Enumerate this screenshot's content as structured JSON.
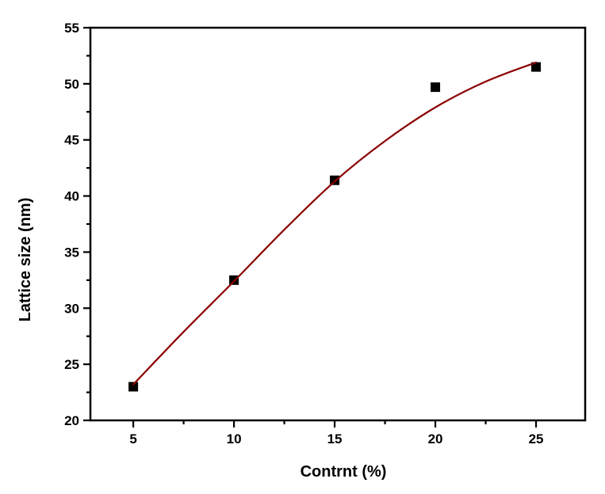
{
  "chart_data": {
    "type": "scatter",
    "title": "",
    "xlabel": "Contrnt (%)",
    "ylabel": "Lattice size (nm)",
    "xlim": [
      2.87,
      27.44
    ],
    "ylim": [
      20,
      55
    ],
    "x_ticks": [
      5,
      10,
      15,
      20,
      25
    ],
    "y_ticks": [
      20,
      25,
      30,
      35,
      40,
      45,
      50,
      55
    ],
    "x_minor_ticks": [
      7.5,
      12.5,
      17.5,
      22.5
    ],
    "y_minor_ticks": [
      22.5,
      27.5,
      32.5,
      37.5,
      42.5,
      47.5,
      52.5
    ],
    "grid": false,
    "frame": true,
    "legend": null,
    "axis_color": "#000000",
    "text_color": "#000000",
    "background_color": "#ffffff",
    "series": [
      {
        "name": "lattice-size-points",
        "type": "scatter",
        "marker": "square",
        "marker_size": 12,
        "color": "#000000",
        "x": [
          5,
          10,
          15,
          20,
          25
        ],
        "y": [
          23.0,
          32.5,
          41.4,
          49.7,
          51.5
        ]
      },
      {
        "name": "fit-line",
        "type": "line",
        "color": "#8b0000",
        "line_width": 2.2,
        "x": [
          5,
          7.5,
          10,
          12.5,
          15,
          17.5,
          20,
          22.5,
          25
        ],
        "y": [
          23.2,
          27.9,
          32.4,
          37.0,
          41.3,
          44.9,
          47.9,
          50.2,
          51.9
        ]
      }
    ]
  }
}
